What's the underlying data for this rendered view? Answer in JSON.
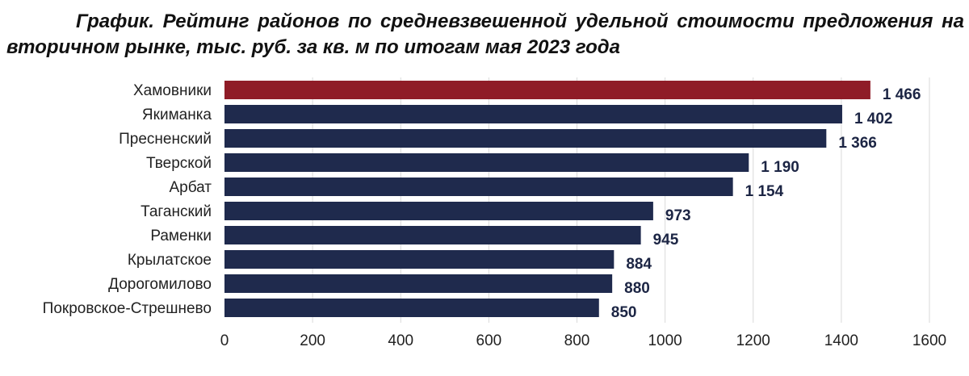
{
  "chart_data": {
    "type": "bar",
    "orientation": "horizontal",
    "title_line1": "График. Рейтинг районов по средневзвешенной удельной стоимости предложения на",
    "title_line2": "вторичном рынке, тыс. руб. за кв. м по итогам мая 2023 года",
    "categories": [
      "Хамовники",
      "Якиманка",
      "Пресненский",
      "Тверской",
      "Арбат",
      "Таганский",
      "Раменки",
      "Крылатское",
      "Дорогомилово",
      "Покровское-Стрешнево"
    ],
    "values": [
      1466,
      1402,
      1366,
      1190,
      1154,
      973,
      945,
      884,
      880,
      850
    ],
    "value_labels": [
      "1 466",
      "1 402",
      "1 366",
      "1 190",
      "1 154",
      "973",
      "945",
      "884",
      "880",
      "850"
    ],
    "xlim": [
      0,
      1600
    ],
    "xticks": [
      0,
      200,
      400,
      600,
      800,
      1000,
      1200,
      1400,
      1600
    ],
    "xlabel": "",
    "ylabel": "",
    "grid": "vertical",
    "colors": {
      "highlight": "#8f1c27",
      "bar": "#1f2a4d",
      "grid": "#d9d9d9"
    }
  }
}
